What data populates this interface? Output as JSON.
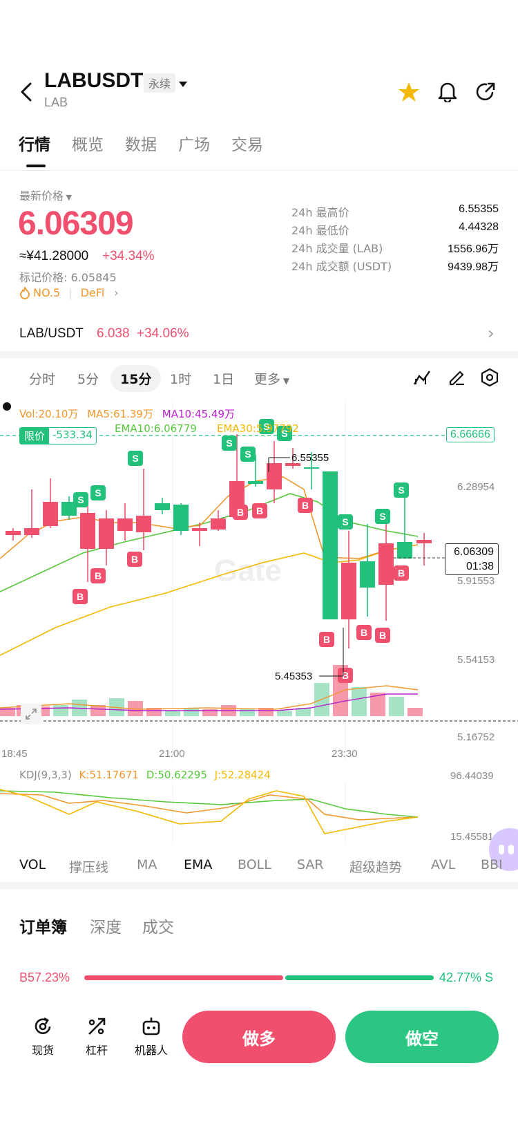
{
  "header": {
    "symbol": "LABUSDT",
    "tag": "永续",
    "base": "LAB"
  },
  "tabs": [
    "行情",
    "概览",
    "数据",
    "广场",
    "交易"
  ],
  "price": {
    "label": "最新价格",
    "last": "6.06309",
    "cny": "≈¥41.28000",
    "change": "+34.34%",
    "mark": "标记价格: 6.05845",
    "rank": "NO.5",
    "category": "DeFi"
  },
  "stats": [
    {
      "label": "24h 最高价",
      "value": "6.55355"
    },
    {
      "label": "24h 最低价",
      "value": "4.44328"
    },
    {
      "label": "24h 成交量 (LAB)",
      "value": "1556.96万"
    },
    {
      "label": "24h 成交额 (USDT)",
      "value": "9439.98万"
    }
  ],
  "spot": {
    "pair": "LAB/USDT",
    "price": "6.038",
    "change": "+34.06%"
  },
  "timeframes": [
    "分时",
    "5分",
    "15分",
    "1时",
    "1日",
    "更多"
  ],
  "chart_labels": {
    "vol": "Vol:20.10万",
    "ma5": "MA5:61.39万",
    "ma10": "MA10:45.49万",
    "limit": "限价",
    "limit_value": "-533.34",
    "ema10": "EMA10:6.06779",
    "ema30": "EMA30:5.97792",
    "limit_price": "6.66666",
    "axis": [
      "6.28954",
      "5.91553",
      "5.54153",
      "5.16752"
    ],
    "current_price": "6.06309",
    "countdown": "01:38",
    "high_mark": "6.55355",
    "low_mark": "5.45353",
    "times": [
      "18:45",
      "21:00",
      "23:30"
    ],
    "watermark": "Gate"
  },
  "kdj": {
    "title": "KDJ(9,3,3)",
    "k": "K:51.17671",
    "d": "D:50.62295",
    "j": "J:52.28424",
    "top": "96.44039",
    "bottom": "15.45581"
  },
  "indicators": [
    "VOL",
    "撑压线",
    "MA",
    "EMA",
    "BOLL",
    "SAR",
    "超级趋势",
    "AVL",
    "BBI"
  ],
  "orderbook": {
    "tabs": [
      "订单簿",
      "深度",
      "成交"
    ],
    "buy": "B57.23%",
    "sell": "42.77% S",
    "buy_ratio": 57.23
  },
  "bottom": {
    "tools": [
      "现货",
      "杠杆",
      "机器人"
    ],
    "long": "做多",
    "short": "做空"
  },
  "colors": {
    "up": "#21c07b",
    "down": "#f0506e",
    "accent": "#f5b800"
  }
}
